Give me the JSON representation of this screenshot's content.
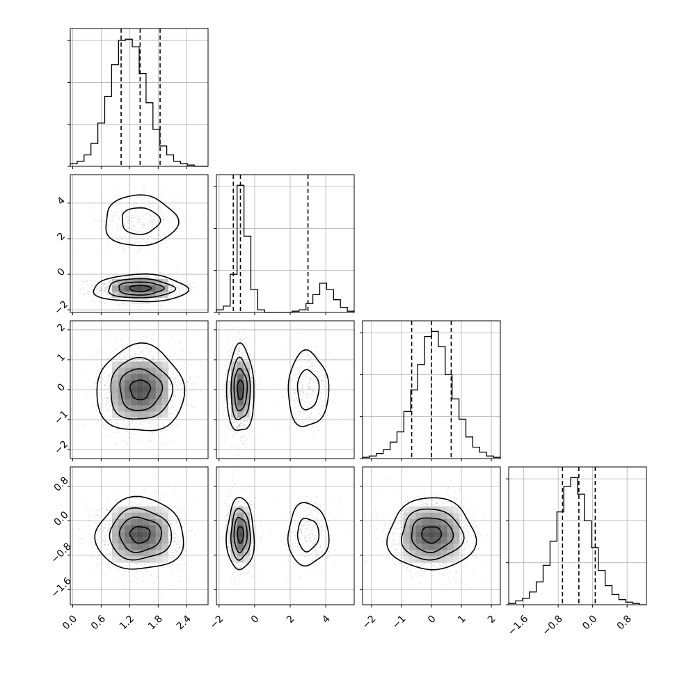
{
  "chart_data": {
    "type": "corner",
    "grid": true,
    "colors": {
      "line": "#000000",
      "grid": "#b0b0b0",
      "points": "#7f7f7f"
    },
    "parameters": [
      {
        "range": [
          -0.05,
          2.85
        ],
        "ticks": [
          0.0,
          0.6,
          1.2,
          1.8,
          2.4
        ],
        "tick_labels": [
          "0.0",
          "0.6",
          "1.2",
          "1.8",
          "2.4"
        ],
        "quantiles": [
          1.02,
          1.42,
          1.84
        ],
        "histogram": {
          "edges_start": -0.05,
          "bin_width": 0.145,
          "counts": [
            2,
            4,
            9,
            18,
            34,
            55,
            80,
            99,
            100,
            94,
            73,
            50,
            29,
            16,
            9,
            4,
            2,
            1,
            0,
            0
          ]
        }
      },
      {
        "range": [
          -2.15,
          5.6
        ],
        "ticks": [
          -2,
          0,
          2,
          4
        ],
        "tick_labels": [
          "−2",
          "0",
          "2",
          "4"
        ],
        "quantiles": [
          -1.2,
          -0.8,
          3.0
        ],
        "histogram": {
          "edges_start": -2.15,
          "bin_width": 0.3875,
          "counts": [
            2,
            5,
            30,
            100,
            60,
            18,
            2,
            0,
            0,
            0,
            0,
            1,
            2,
            7,
            14,
            23,
            18,
            10,
            4,
            1
          ]
        }
      },
      {
        "range": [
          -2.3,
          2.3
        ],
        "ticks": [
          -2,
          -1,
          0,
          1,
          2
        ],
        "tick_labels": [
          "−2",
          "−1",
          "0",
          "1",
          "2"
        ],
        "quantiles": [
          -0.66,
          0.0,
          0.66
        ],
        "histogram": {
          "edges_start": -2.3,
          "bin_width": 0.23,
          "counts": [
            1,
            2,
            4,
            7,
            13,
            21,
            37,
            54,
            74,
            96,
            100,
            88,
            66,
            47,
            31,
            17,
            9,
            5,
            2,
            1
          ]
        }
      },
      {
        "range": [
          -1.95,
          1.25
        ],
        "ticks": [
          -1.6,
          -0.8,
          0.0,
          0.8
        ],
        "tick_labels": [
          "−1.6",
          "−0.8",
          "0.0",
          "0.8"
        ],
        "quantiles": [
          -0.7,
          -0.32,
          0.06
        ],
        "histogram": {
          "edges_start": -1.95,
          "bin_width": 0.16,
          "counts": [
            1,
            3,
            5,
            10,
            18,
            31,
            50,
            73,
            93,
            100,
            87,
            66,
            45,
            27,
            15,
            8,
            4,
            2,
            1,
            0
          ]
        }
      }
    ],
    "pair_plots": [
      {
        "x": 0,
        "y": 1,
        "modes": [
          {
            "center": [
              1.42,
              -0.8
            ],
            "sd": [
              0.45,
              0.35
            ],
            "weight": 0.8
          },
          {
            "center": [
              1.42,
              3.0
            ],
            "sd": [
              0.4,
              0.75
            ],
            "weight": 0.2
          }
        ]
      },
      {
        "x": 0,
        "y": 2,
        "modes": [
          {
            "center": [
              1.42,
              0.0
            ],
            "sd": [
              0.42,
              0.66
            ],
            "weight": 1.0
          }
        ]
      },
      {
        "x": 1,
        "y": 2,
        "modes": [
          {
            "center": [
              -0.8,
              0.0
            ],
            "sd": [
              0.35,
              0.66
            ],
            "weight": 0.8
          },
          {
            "center": [
              3.0,
              0.0
            ],
            "sd": [
              0.6,
              0.66
            ],
            "weight": 0.2
          }
        ]
      },
      {
        "x": 0,
        "y": 3,
        "modes": [
          {
            "center": [
              1.42,
              -0.32
            ],
            "sd": [
              0.42,
              0.38
            ],
            "weight": 1.0
          }
        ]
      },
      {
        "x": 1,
        "y": 3,
        "modes": [
          {
            "center": [
              -0.8,
              -0.32
            ],
            "sd": [
              0.35,
              0.38
            ],
            "weight": 0.8
          },
          {
            "center": [
              3.0,
              -0.32
            ],
            "sd": [
              0.6,
              0.38
            ],
            "weight": 0.2
          }
        ]
      },
      {
        "x": 2,
        "y": 3,
        "modes": [
          {
            "center": [
              0.0,
              -0.32
            ],
            "sd": [
              0.66,
              0.38
            ],
            "weight": 1.0
          }
        ]
      }
    ]
  }
}
